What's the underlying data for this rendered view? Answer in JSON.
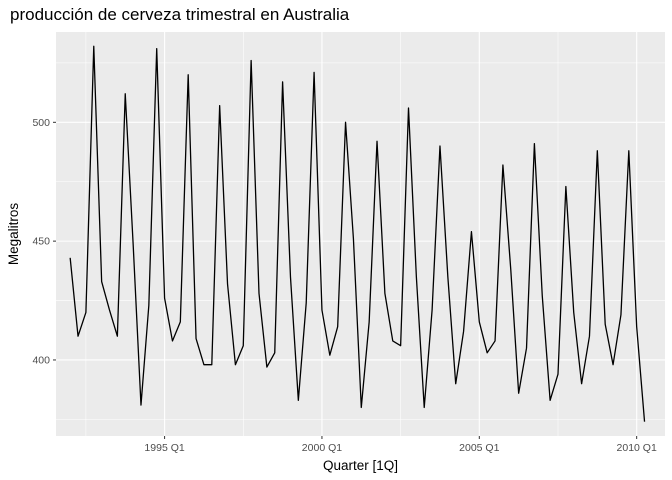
{
  "chart_data": {
    "type": "line",
    "title": "producción de cerveza trimestral en Australia",
    "xlabel": "Quarter [1Q]",
    "ylabel": "Megalitros",
    "x_start": {
      "year": 1992,
      "quarter": 1
    },
    "x_ticks": [
      {
        "year": 1995,
        "label": "1995 Q1"
      },
      {
        "year": 2000,
        "label": "2000 Q1"
      },
      {
        "year": 2005,
        "label": "2005 Q1"
      },
      {
        "year": 2010,
        "label": "2010 Q1"
      }
    ],
    "y_ticks": [
      400,
      450,
      500
    ],
    "ylim": [
      368,
      538
    ],
    "xlim": [
      1991.55,
      2010.9
    ],
    "grid": true,
    "values": [
      443,
      410,
      420,
      532,
      433,
      421,
      410,
      512,
      449,
      381,
      423,
      531,
      426,
      408,
      416,
      520,
      409,
      398,
      398,
      507,
      432,
      398,
      406,
      526,
      428,
      397,
      403,
      517,
      435,
      383,
      424,
      521,
      421,
      402,
      414,
      500,
      451,
      380,
      416,
      492,
      428,
      408,
      406,
      506,
      435,
      380,
      421,
      490,
      435,
      390,
      412,
      454,
      416,
      403,
      408,
      482,
      438,
      386,
      405,
      491,
      427,
      383,
      394,
      473,
      420,
      390,
      410,
      488,
      415,
      398,
      419,
      488,
      414,
      374
    ]
  }
}
